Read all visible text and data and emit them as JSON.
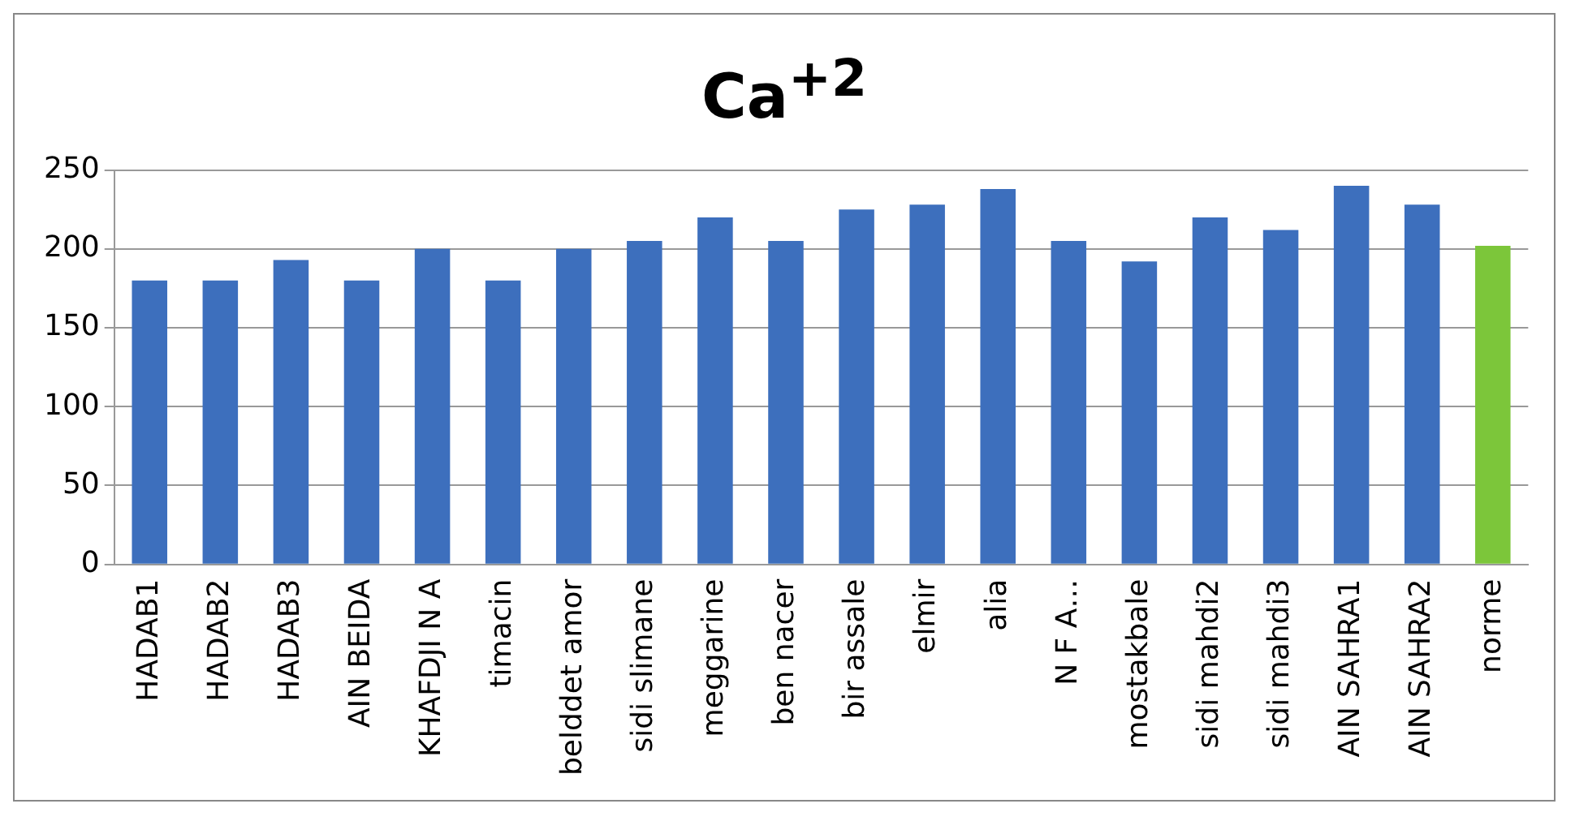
{
  "chart_data": {
    "type": "bar",
    "title": "Ca$^{+2}$",
    "categories": [
      "HADAB1",
      "HADAB2",
      "HADAB3",
      "AIN BEIDA",
      "KHAFDJI N A",
      "timacin",
      "belddet amor",
      "sidi slimane",
      "meggarine",
      "ben nacer",
      "bir assale",
      "elmir",
      "alia",
      "N F A…",
      "mostakbale",
      "sidi mahdi2",
      "sidi mahdi3",
      "AIN SAHRA1",
      "AIN SAHRA2",
      "norme"
    ],
    "values": [
      180,
      180,
      193,
      180,
      200,
      180,
      200,
      205,
      220,
      205,
      225,
      228,
      238,
      205,
      192,
      220,
      212,
      240,
      228,
      202
    ],
    "colors": [
      "#3d6fbd",
      "#3d6fbd",
      "#3d6fbd",
      "#3d6fbd",
      "#3d6fbd",
      "#3d6fbd",
      "#3d6fbd",
      "#3d6fbd",
      "#3d6fbd",
      "#3d6fbd",
      "#3d6fbd",
      "#3d6fbd",
      "#3d6fbd",
      "#3d6fbd",
      "#3d6fbd",
      "#3d6fbd",
      "#3d6fbd",
      "#3d6fbd",
      "#3d6fbd",
      "#7cc63a"
    ],
    "ylim": [
      0,
      250
    ],
    "yticks": [
      0,
      50,
      100,
      150,
      200,
      250
    ],
    "grid": "y",
    "legend": false
  }
}
